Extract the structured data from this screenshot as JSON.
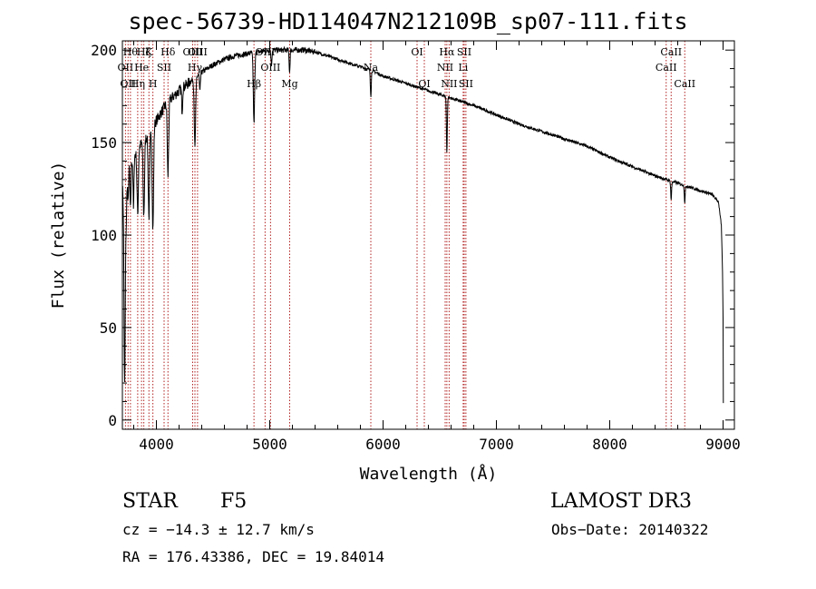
{
  "chart_data": {
    "type": "line",
    "title": "spec-56739-HD114047N212109B_sp07-111.fits",
    "xlabel": "Wavelength (Å)",
    "ylabel": "Flux (relative)",
    "xlim": [
      3700,
      9100
    ],
    "ylim": [
      -5,
      205
    ],
    "x_ticks": [
      4000,
      5000,
      6000,
      7000,
      8000,
      9000
    ],
    "y_ticks": [
      0,
      50,
      100,
      150,
      200
    ],
    "x_minor_step": 200,
    "y_minor_step": 10,
    "grid": false,
    "line_color": "#000000",
    "marker_color": "#b22222",
    "series": [
      {
        "name": "flux",
        "continuum": [
          [
            3700,
            125
          ],
          [
            3750,
            135
          ],
          [
            3800,
            142
          ],
          [
            3850,
            148
          ],
          [
            3900,
            152
          ],
          [
            3950,
            156
          ],
          [
            4000,
            162
          ],
          [
            4050,
            167
          ],
          [
            4100,
            172
          ],
          [
            4200,
            178
          ],
          [
            4300,
            183
          ],
          [
            4400,
            188
          ],
          [
            4500,
            192
          ],
          [
            4600,
            195
          ],
          [
            4700,
            197
          ],
          [
            4800,
            198
          ],
          [
            4900,
            199
          ],
          [
            5000,
            200
          ],
          [
            5100,
            200
          ],
          [
            5200,
            200
          ],
          [
            5300,
            200
          ],
          [
            5400,
            199
          ],
          [
            5500,
            197
          ],
          [
            5600,
            195
          ],
          [
            5700,
            193
          ],
          [
            5800,
            191
          ],
          [
            5900,
            189
          ],
          [
            6000,
            186
          ],
          [
            6200,
            182
          ],
          [
            6400,
            178
          ],
          [
            6600,
            174
          ],
          [
            6800,
            170
          ],
          [
            7000,
            165
          ],
          [
            7200,
            160
          ],
          [
            7400,
            156
          ],
          [
            7600,
            152
          ],
          [
            7800,
            148
          ],
          [
            8000,
            142
          ],
          [
            8200,
            137
          ],
          [
            8400,
            132
          ],
          [
            8600,
            128
          ],
          [
            8800,
            124
          ],
          [
            8900,
            122
          ],
          [
            8960,
            118
          ],
          [
            8985,
            105
          ],
          [
            8995,
            80
          ],
          [
            9000,
            55
          ],
          [
            9003,
            0
          ]
        ],
        "absorption": [
          {
            "x": 3720,
            "depth": 110
          },
          {
            "x": 3735,
            "depth": 20
          },
          {
            "x": 3750,
            "depth": 18
          },
          {
            "x": 3771,
            "depth": 25
          },
          {
            "x": 3798,
            "depth": 28
          },
          {
            "x": 3835,
            "depth": 35
          },
          {
            "x": 3889,
            "depth": 40
          },
          {
            "x": 3934,
            "depth": 45
          },
          {
            "x": 3969,
            "depth": 55
          },
          {
            "x": 4102,
            "depth": 40
          },
          {
            "x": 4227,
            "depth": 12
          },
          {
            "x": 4340,
            "depth": 38
          },
          {
            "x": 4384,
            "depth": 10
          },
          {
            "x": 4861,
            "depth": 38
          },
          {
            "x": 5015,
            "depth": 8
          },
          {
            "x": 5175,
            "depth": 12
          },
          {
            "x": 5892,
            "depth": 14
          },
          {
            "x": 6563,
            "depth": 30
          },
          {
            "x": 8542,
            "depth": 10
          },
          {
            "x": 8662,
            "depth": 9
          }
        ]
      }
    ],
    "lines": [
      {
        "x": 3727,
        "label": "OII",
        "row": 2
      },
      {
        "x": 3750,
        "label": "OII",
        "row": 3
      },
      {
        "x": 3771,
        "label": "Hθ",
        "row": 1
      },
      {
        "x": 3835,
        "label": "Hη",
        "row": 3
      },
      {
        "x": 3869,
        "label": "He",
        "row": 2
      },
      {
        "x": 3889,
        "label": "Hζ",
        "row": 1
      },
      {
        "x": 3934,
        "label": "K",
        "row": 1
      },
      {
        "x": 3969,
        "label": "H",
        "row": 3
      },
      {
        "x": 4068,
        "label": "SII",
        "row": 2
      },
      {
        "x": 4102,
        "label": "Hδ",
        "row": 1
      },
      {
        "x": 4320,
        "label": "OIII",
        "row": 1
      },
      {
        "x": 4340,
        "label": "Hγ",
        "row": 2
      },
      {
        "x": 4363,
        "label": "OIII",
        "row": 1
      },
      {
        "x": 4861,
        "label": "Hβ",
        "row": 3
      },
      {
        "x": 4959,
        "label": "OIII",
        "row": 1
      },
      {
        "x": 5007,
        "label": "OIII",
        "row": 2
      },
      {
        "x": 5176,
        "label": "Mg",
        "row": 3
      },
      {
        "x": 5892,
        "label": "Na",
        "row": 2
      },
      {
        "x": 6300,
        "label": "OI",
        "row": 1
      },
      {
        "x": 6364,
        "label": "OI",
        "row": 3
      },
      {
        "x": 6548,
        "label": "NII",
        "row": 2
      },
      {
        "x": 6563,
        "label": "Hα",
        "row": 1
      },
      {
        "x": 6583,
        "label": "NII",
        "row": 3
      },
      {
        "x": 6707,
        "label": "Li",
        "row": 2
      },
      {
        "x": 6716,
        "label": "SII",
        "row": 1
      },
      {
        "x": 6731,
        "label": "SII",
        "row": 3
      },
      {
        "x": 8498,
        "label": "CaII",
        "row": 2
      },
      {
        "x": 8542,
        "label": "CaII",
        "row": 1
      },
      {
        "x": 8662,
        "label": "CaII",
        "row": 3
      }
    ]
  },
  "info": {
    "class": "STAR",
    "subclass": "F5",
    "survey": "LAMOST DR3",
    "cz": "cz = −14.3 ± 12.7 km/s",
    "obs_date": "Obs−Date: 20140322",
    "coords": "RA = 176.43386, DEC =  19.84014"
  }
}
